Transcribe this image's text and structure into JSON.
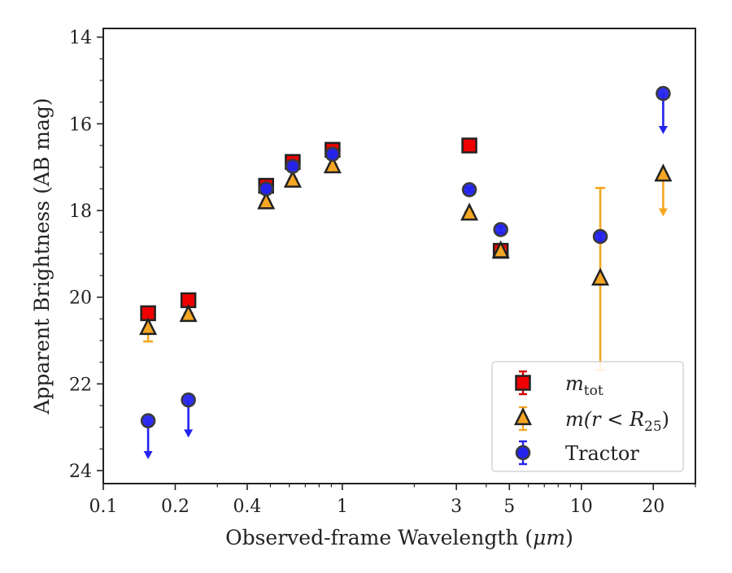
{
  "chart_data": {
    "type": "scatter",
    "xlabel": "Observed-frame Wavelength (",
    "xlabel_unit": "μm",
    "xlabel_close": ")",
    "ylabel": "Apparent Brightness (AB mag)",
    "xscale": "log",
    "xlim": [
      0.1,
      30
    ],
    "ylim": [
      24.3,
      13.8
    ],
    "y_inverted": true,
    "x_ticks": [
      0.1,
      0.2,
      0.4,
      1,
      3,
      5,
      10,
      20
    ],
    "x_tick_labels": [
      "0.1",
      "0.2",
      "0.4",
      "1",
      "3",
      "5",
      "10",
      "20"
    ],
    "y_ticks": [
      14,
      16,
      18,
      20,
      22,
      24
    ],
    "y_tick_labels": [
      "14",
      "16",
      "18",
      "20",
      "22",
      "24"
    ],
    "legend_position": "lower-right",
    "series": [
      {
        "key": "mtot",
        "label_main": "m",
        "label_sub": "tot",
        "marker": "square",
        "color": "#ee0000",
        "edge": "#222222",
        "points": [
          {
            "x": 0.154,
            "y": 20.37,
            "err": 0.06
          },
          {
            "x": 0.227,
            "y": 20.07,
            "err": 0.06
          },
          {
            "x": 0.48,
            "y": 17.43,
            "err": 0.05
          },
          {
            "x": 0.62,
            "y": 16.88,
            "err": 0.05
          },
          {
            "x": 0.91,
            "y": 16.6,
            "err": 0.08
          },
          {
            "x": 3.4,
            "y": 16.5,
            "err": 0.05
          },
          {
            "x": 4.6,
            "y": 18.93,
            "err": 0.08
          }
        ]
      },
      {
        "key": "mr25",
        "label_pre": "m(r < R",
        "label_sub": "25",
        "label_post": ")",
        "marker": "triangle",
        "color": "#f5a623",
        "edge": "#222222",
        "points": [
          {
            "x": 0.154,
            "y": 20.72,
            "err_lo": 0.3,
            "err_hi": 0.0
          },
          {
            "x": 0.227,
            "y": 20.42,
            "err": 0.05
          },
          {
            "x": 0.48,
            "y": 17.82,
            "err": 0.05
          },
          {
            "x": 0.62,
            "y": 17.32,
            "err": 0.05
          },
          {
            "x": 0.91,
            "y": 16.99,
            "err": 0.05
          },
          {
            "x": 3.4,
            "y": 18.08,
            "err": 0.05
          },
          {
            "x": 4.6,
            "y": 18.95,
            "err": 0.05
          },
          {
            "x": 12.0,
            "y": 19.58,
            "err_up": 2.1,
            "err_down": 2.1
          },
          {
            "x": 22.0,
            "y": 17.18,
            "upper_limit": true,
            "arrow_to": 18.1
          }
        ]
      },
      {
        "key": "tractor",
        "label_main": "Tractor",
        "marker": "circle",
        "color": "#2323ee",
        "edge": "#3a3a3a",
        "points": [
          {
            "x": 0.154,
            "y": 22.85,
            "upper_limit": true,
            "arrow_to": 23.7
          },
          {
            "x": 0.227,
            "y": 22.37,
            "upper_limit": true,
            "arrow_to": 23.2
          },
          {
            "x": 0.48,
            "y": 17.5,
            "err": 0.05
          },
          {
            "x": 0.62,
            "y": 16.98,
            "err": 0.05
          },
          {
            "x": 0.91,
            "y": 16.7,
            "err": 0.05
          },
          {
            "x": 3.4,
            "y": 17.52,
            "err": 0.05
          },
          {
            "x": 4.6,
            "y": 18.44,
            "err": 0.08
          },
          {
            "x": 12.0,
            "y": 18.6,
            "err": 0.08
          },
          {
            "x": 22.0,
            "y": 15.3,
            "upper_limit": true,
            "arrow_to": 16.2
          }
        ]
      }
    ]
  }
}
